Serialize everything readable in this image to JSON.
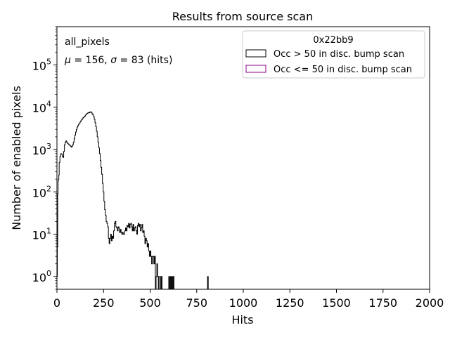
{
  "chart_data": {
    "type": "histogram-step",
    "title": "Results from source scan",
    "xlabel": "Hits",
    "ylabel": "Number of enabled pixels",
    "xlim": [
      0,
      2000
    ],
    "ylim": [
      0.5,
      800000
    ],
    "yscale": "log",
    "xticks": [
      0,
      250,
      500,
      750,
      1000,
      1250,
      1500,
      1750,
      2000
    ],
    "yticks": [
      1,
      10,
      100,
      1000,
      10000,
      100000
    ],
    "yticklabels": [
      {
        "base": "10",
        "exp": "0"
      },
      {
        "base": "10",
        "exp": "1"
      },
      {
        "base": "10",
        "exp": "2"
      },
      {
        "base": "10",
        "exp": "3"
      },
      {
        "base": "10",
        "exp": "4"
      },
      {
        "base": "10",
        "exp": "5"
      }
    ],
    "annotations": {
      "label": "all_pixels",
      "stats": {
        "mu_sym": "μ",
        "mu_val": " = 156, ",
        "sigma_sym": "σ",
        "sigma_val": " = 83 (hits)"
      }
    },
    "legend": {
      "placement": "top-right",
      "title": "0x22bb9",
      "entries": [
        {
          "label": "Occ > 50 in disc. bump scan",
          "color": "#000000"
        },
        {
          "label": "Occ <= 50 in disc. bump scan",
          "color": "#8b008b"
        }
      ]
    },
    "series": [
      {
        "name": "Occ > 50 in disc. bump scan",
        "color": "#000000",
        "points": [
          [
            0,
            1
          ],
          [
            2,
            5
          ],
          [
            4,
            90
          ],
          [
            6,
            180
          ],
          [
            8,
            200
          ],
          [
            10,
            250
          ],
          [
            12,
            500
          ],
          [
            16,
            700
          ],
          [
            20,
            800
          ],
          [
            24,
            780
          ],
          [
            28,
            700
          ],
          [
            32,
            650
          ],
          [
            36,
            900
          ],
          [
            40,
            1300
          ],
          [
            44,
            1500
          ],
          [
            48,
            1600
          ],
          [
            52,
            1500
          ],
          [
            56,
            1400
          ],
          [
            60,
            1350
          ],
          [
            64,
            1300
          ],
          [
            68,
            1250
          ],
          [
            72,
            1200
          ],
          [
            76,
            1150
          ],
          [
            80,
            1200
          ],
          [
            84,
            1300
          ],
          [
            88,
            1500
          ],
          [
            92,
            1800
          ],
          [
            96,
            2200
          ],
          [
            100,
            2600
          ],
          [
            104,
            3000
          ],
          [
            108,
            3400
          ],
          [
            112,
            3700
          ],
          [
            116,
            4000
          ],
          [
            120,
            4200
          ],
          [
            124,
            4500
          ],
          [
            128,
            4800
          ],
          [
            132,
            5100
          ],
          [
            136,
            5400
          ],
          [
            140,
            5700
          ],
          [
            144,
            5900
          ],
          [
            148,
            6100
          ],
          [
            152,
            6500
          ],
          [
            156,
            6900
          ],
          [
            160,
            7100
          ],
          [
            164,
            7300
          ],
          [
            168,
            7500
          ],
          [
            172,
            7400
          ],
          [
            176,
            7600
          ],
          [
            180,
            7800
          ],
          [
            184,
            7500
          ],
          [
            188,
            7000
          ],
          [
            192,
            6600
          ],
          [
            196,
            6000
          ],
          [
            200,
            5200
          ],
          [
            204,
            4300
          ],
          [
            208,
            3500
          ],
          [
            212,
            2700
          ],
          [
            216,
            2000
          ],
          [
            220,
            1500
          ],
          [
            224,
            1100
          ],
          [
            228,
            800
          ],
          [
            232,
            550
          ],
          [
            236,
            380
          ],
          [
            240,
            260
          ],
          [
            244,
            160
          ],
          [
            248,
            100
          ],
          [
            252,
            60
          ],
          [
            256,
            38
          ],
          [
            260,
            28
          ],
          [
            264,
            20
          ],
          [
            268,
            18
          ],
          [
            272,
            15
          ],
          [
            276,
            8
          ],
          [
            280,
            6
          ],
          [
            284,
            8
          ],
          [
            288,
            10
          ],
          [
            292,
            7
          ],
          [
            296,
            9
          ],
          [
            300,
            8
          ],
          [
            304,
            12
          ],
          [
            308,
            18
          ],
          [
            312,
            20
          ],
          [
            316,
            15
          ],
          [
            320,
            14
          ],
          [
            324,
            12
          ],
          [
            328,
            15
          ],
          [
            332,
            14
          ],
          [
            336,
            11
          ],
          [
            340,
            13
          ],
          [
            344,
            11
          ],
          [
            348,
            10
          ],
          [
            352,
            11
          ],
          [
            356,
            10
          ],
          [
            360,
            10
          ],
          [
            364,
            12
          ],
          [
            368,
            14
          ],
          [
            372,
            12
          ],
          [
            376,
            16
          ],
          [
            380,
            15
          ],
          [
            384,
            18
          ],
          [
            388,
            14
          ],
          [
            392,
            17
          ],
          [
            396,
            18
          ],
          [
            400,
            15
          ],
          [
            404,
            12
          ],
          [
            408,
            17
          ],
          [
            412,
            12
          ],
          [
            416,
            14
          ],
          [
            420,
            15
          ],
          [
            424,
            12
          ],
          [
            428,
            10
          ],
          [
            432,
            16
          ],
          [
            436,
            18
          ],
          [
            440,
            15
          ],
          [
            444,
            17
          ],
          [
            448,
            12
          ],
          [
            452,
            14
          ],
          [
            456,
            17
          ],
          [
            460,
            11
          ],
          [
            464,
            12
          ],
          [
            468,
            9
          ],
          [
            472,
            6
          ],
          [
            476,
            8
          ],
          [
            480,
            7
          ],
          [
            484,
            5
          ],
          [
            488,
            6
          ],
          [
            492,
            4
          ],
          [
            496,
            3
          ],
          [
            500,
            4
          ],
          [
            504,
            3
          ],
          [
            508,
            2
          ],
          [
            512,
            3
          ],
          [
            516,
            3
          ],
          [
            520,
            2
          ],
          [
            524,
            3
          ],
          [
            528,
            0
          ],
          [
            532,
            1
          ],
          [
            536,
            2
          ],
          [
            540,
            1
          ],
          [
            544,
            0
          ],
          [
            548,
            1
          ],
          [
            552,
            1
          ],
          [
            556,
            0
          ],
          [
            560,
            1
          ],
          [
            564,
            0
          ],
          [
            600,
            1
          ],
          [
            604,
            0
          ],
          [
            608,
            1
          ],
          [
            612,
            0
          ],
          [
            616,
            1
          ],
          [
            620,
            0
          ],
          [
            624,
            1
          ],
          [
            628,
            0
          ],
          [
            808,
            1
          ],
          [
            812,
            0
          ]
        ]
      },
      {
        "name": "Occ <= 50 in disc. bump scan",
        "color": "#8b008b",
        "points": []
      }
    ]
  }
}
